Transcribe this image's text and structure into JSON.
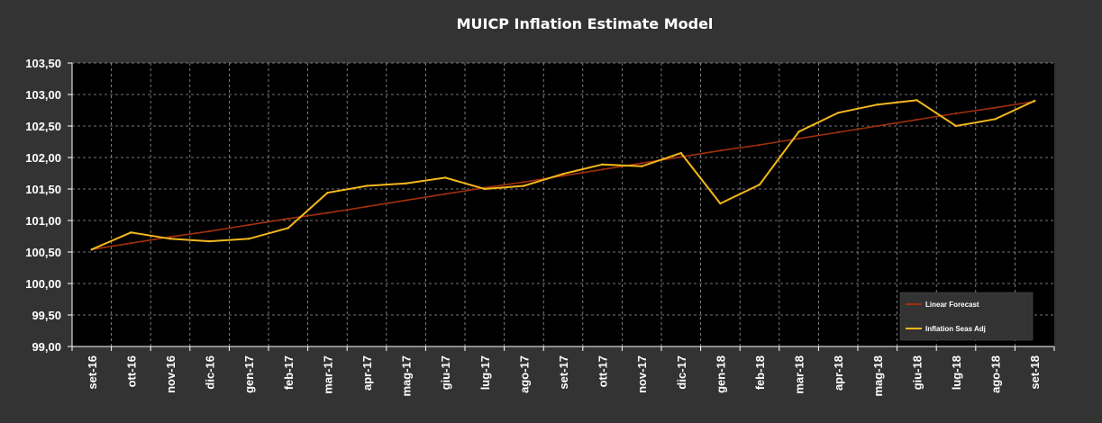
{
  "chart_data": {
    "type": "line",
    "title": "MUICP Inflation Estimate Model",
    "xlabel": "",
    "ylabel": "",
    "categories": [
      "set-16",
      "ott-16",
      "nov-16",
      "dic-16",
      "gen-17",
      "feb-17",
      "mar-17",
      "apr-17",
      "mag-17",
      "giu-17",
      "lug-17",
      "ago-17",
      "set-17",
      "ott-17",
      "nov-17",
      "dic-17",
      "gen-18",
      "feb-18",
      "mar-18",
      "apr-18",
      "mag-18",
      "giu-18",
      "lug-18",
      "ago-18",
      "set-18"
    ],
    "ylim": [
      99.0,
      103.5
    ],
    "yticks": [
      99.0,
      99.5,
      100.0,
      100.5,
      101.0,
      101.5,
      102.0,
      102.5,
      103.0,
      103.5
    ],
    "ytick_labels": [
      "99,00",
      "99,50",
      "100,00",
      "100,50",
      "101,00",
      "101,50",
      "102,00",
      "102,50",
      "103,00",
      "103,50"
    ],
    "grid": true,
    "legend_position": "bottom-right",
    "series": [
      {
        "name": "Linear Forecast",
        "color": "#a0300c",
        "values": [
          100.54,
          100.64,
          100.74,
          100.83,
          100.93,
          101.03,
          101.12,
          101.22,
          101.32,
          101.42,
          101.52,
          101.61,
          101.71,
          101.81,
          101.91,
          102.01,
          102.11,
          102.2,
          102.3,
          102.4,
          102.5,
          102.6,
          102.7,
          102.79,
          102.89
        ]
      },
      {
        "name": "Inflation Seas Adj",
        "color": "#f5b81c",
        "values": [
          100.54,
          100.81,
          100.71,
          100.67,
          100.71,
          100.88,
          101.44,
          101.55,
          101.59,
          101.68,
          101.5,
          101.55,
          101.74,
          101.89,
          101.86,
          102.07,
          101.27,
          101.57,
          102.41,
          102.71,
          102.84,
          102.91,
          102.5,
          102.61,
          102.9
        ]
      }
    ]
  }
}
